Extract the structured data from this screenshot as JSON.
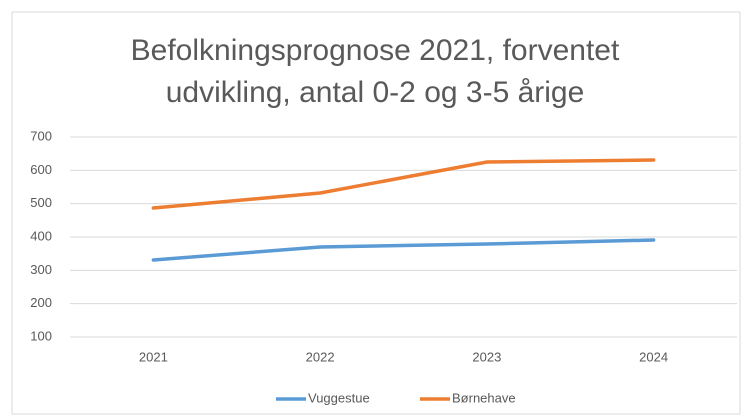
{
  "chart_data": {
    "type": "line",
    "title": "Befolkningsprognose 2021, forventet udvikling, antal 0-2 og 3-5 årige",
    "categories": [
      "2021",
      "2022",
      "2023",
      "2024"
    ],
    "series": [
      {
        "name": "Vuggestue",
        "color": "#5b9bd5",
        "values": [
          331,
          370,
          379,
          391
        ]
      },
      {
        "name": "Børnehave",
        "color": "#ed7d31",
        "values": [
          487,
          532,
          625,
          631
        ]
      }
    ],
    "ylim": [
      100,
      700
    ],
    "yticks": [
      100,
      200,
      300,
      400,
      500,
      600,
      700
    ],
    "grid": true,
    "legend": "bottom"
  }
}
